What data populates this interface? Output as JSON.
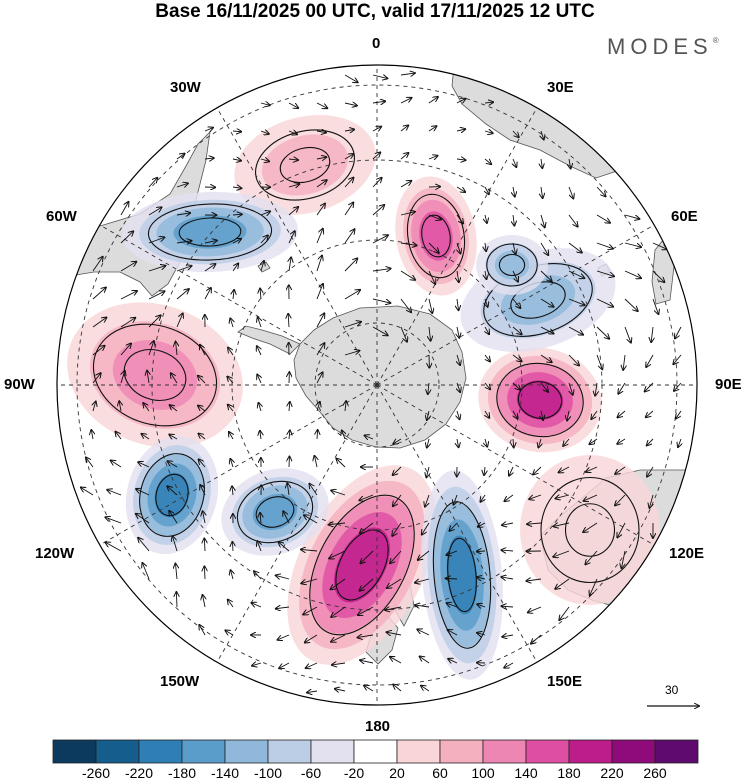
{
  "title": "Base 16/11/2025 00 UTC, valid 17/11/2025 12 UTC",
  "brand": "MODES",
  "brand_mark": "®",
  "map": {
    "projection": "south-polar-stereographic",
    "longitude_labels": {
      "lon_0": "0",
      "lon_30e": "30E",
      "lon_60e": "60E",
      "lon_90e": "90E",
      "lon_120e": "120E",
      "lon_150e": "150E",
      "lon_180": "180",
      "lon_150w": "150W",
      "lon_120w": "120W",
      "lon_90w": "90W",
      "lon_60w": "60W",
      "lon_30w": "30W"
    },
    "wind_reference_vector": "30"
  },
  "colorbar": {
    "tick_labels": [
      "-260",
      "-220",
      "-180",
      "-140",
      "-100",
      "-60",
      "-20",
      "20",
      "60",
      "100",
      "140",
      "180",
      "220",
      "260"
    ],
    "colors": [
      "#0b3a5e",
      "#155d8c",
      "#2f7fb5",
      "#5a9dcb",
      "#8fb8da",
      "#bccde6",
      "#e3e1ef",
      "#ffffff",
      "#f9d5d8",
      "#f5b0c0",
      "#ee86b3",
      "#de4ea3",
      "#bd1c8b",
      "#8f0a7a",
      "#5e0a6e"
    ]
  },
  "colors": {
    "land": "#d9d9d9",
    "grid": "#333333",
    "vector": "#111111"
  }
}
